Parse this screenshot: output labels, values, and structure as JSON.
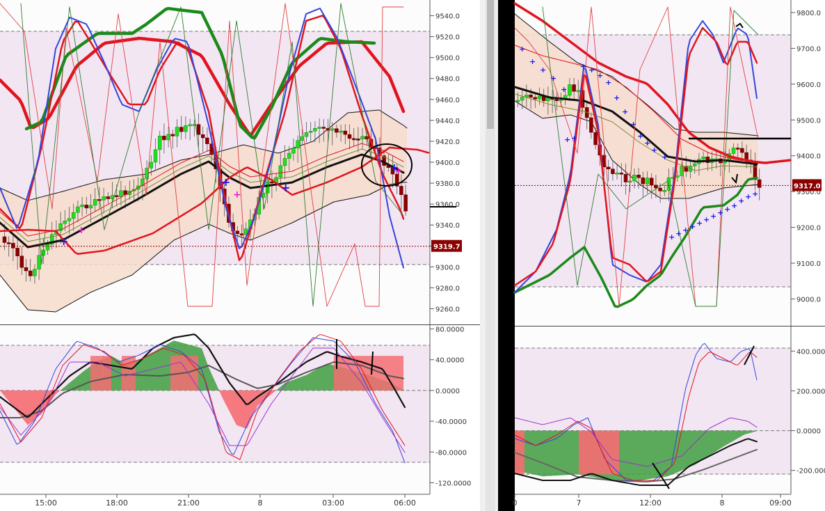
{
  "colors": {
    "band_fill": "#f6dccb",
    "zone_fill": "#f2e7f3",
    "bull": "#22dd22",
    "bear": "#8b0000",
    "red_line": "#e0141e",
    "green_line": "#1a8a1a",
    "blue_line": "#3344dd",
    "hist_pos": "#f56d72",
    "hist_neg": "#3f9d3f"
  },
  "chart_data": [
    {
      "type": "line",
      "name": "left-price",
      "y_ticks": [
        "9540.0",
        "9520.0",
        "9500.0",
        "9480.0",
        "9460.0",
        "9440.0",
        "9420.0",
        "9400.0",
        "9380.0",
        "9360.0",
        "9340.0",
        "9320.0",
        "9300.0",
        "9280.0",
        "9260.0"
      ],
      "ylim": [
        9245,
        9555
      ],
      "x_ticks": [
        "15:00",
        "18:00",
        "21:00",
        "8",
        "03:00",
        "06:00"
      ],
      "last_price": "9319.7"
    },
    {
      "type": "area",
      "name": "left-oscillator",
      "y_ticks": [
        "80.0000",
        "40.0000",
        "0.0000",
        "-40.0000",
        "-80.0000",
        "-120.0000"
      ],
      "ylim": [
        -135,
        85
      ]
    },
    {
      "type": "line",
      "name": "right-price",
      "y_ticks": [
        "9800.0",
        "9700.0",
        "9600.0",
        "9500.0",
        "9400.0",
        "9300.0",
        "9200.0",
        "9100.0",
        "9000.0"
      ],
      "ylim": [
        8925,
        9835
      ],
      "x_ticks": [
        "0",
        "7",
        "12:00",
        "8",
        "09:00"
      ],
      "last_price": "9317.0"
    },
    {
      "type": "area",
      "name": "right-oscillator",
      "y_ticks": [
        "400.0000",
        "200.0000",
        "0.0000",
        "-200.0000"
      ],
      "ylim": [
        -320,
        520
      ]
    }
  ]
}
